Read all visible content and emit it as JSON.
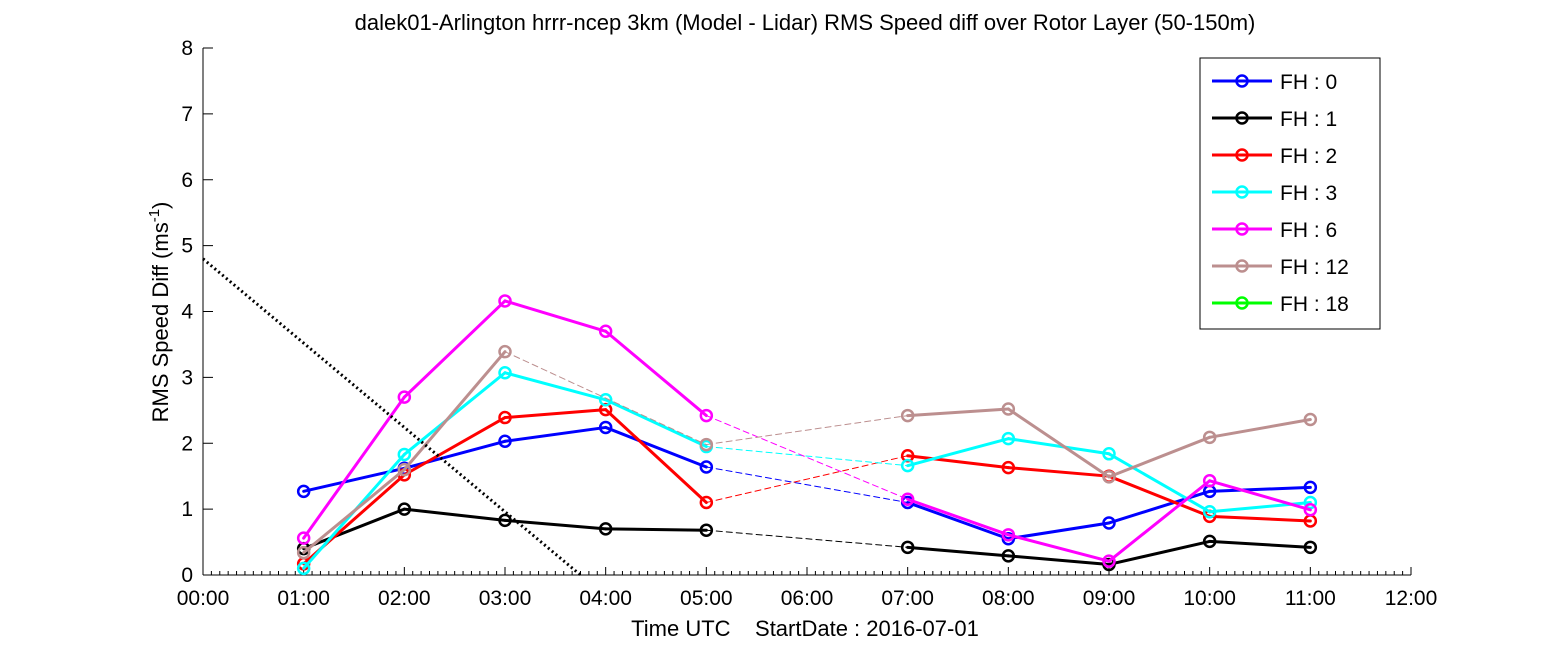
{
  "chart_data": {
    "type": "line",
    "title": "dalek01-Arlington hrrr-ncep 3km (Model - Lidar) RMS Speed diff over Rotor Layer (50-150m)",
    "xlabel": "Time UTC    StartDate : 2016-07-01",
    "ylabel_main": "RMS Speed Diff (ms",
    "ylabel_sup": "-1",
    "ylabel_end": ")",
    "xlim": [
      0,
      12
    ],
    "ylim": [
      0,
      8
    ],
    "x_tick_labels": [
      "00:00",
      "01:00",
      "02:00",
      "03:00",
      "04:00",
      "05:00",
      "06:00",
      "07:00",
      "08:00",
      "09:00",
      "10:00",
      "11:00",
      "12:00"
    ],
    "y_tick_labels": [
      "0",
      "1",
      "2",
      "3",
      "4",
      "5",
      "6",
      "7",
      "8"
    ],
    "grid": false,
    "legend_position": "top-right",
    "series": [
      {
        "name": "FH : 0",
        "color": "#0000ff",
        "points": [
          [
            1,
            1.27
          ],
          [
            2,
            1.62
          ],
          [
            3,
            2.03
          ],
          [
            4,
            2.24
          ],
          [
            5,
            1.64
          ],
          [
            7,
            1.1
          ],
          [
            8,
            0.55
          ],
          [
            9,
            0.79
          ],
          [
            10,
            1.27
          ],
          [
            11,
            1.33
          ]
        ]
      },
      {
        "name": "FH : 1",
        "color": "#000000",
        "points": [
          [
            1,
            0.4
          ],
          [
            2,
            1.0
          ],
          [
            3,
            0.83
          ],
          [
            4,
            0.7
          ],
          [
            5,
            0.68
          ],
          [
            7,
            0.42
          ],
          [
            8,
            0.29
          ],
          [
            9,
            0.16
          ],
          [
            10,
            0.51
          ],
          [
            11,
            0.42
          ]
        ]
      },
      {
        "name": "FH : 2",
        "color": "#ff0000",
        "points": [
          [
            1,
            0.17
          ],
          [
            2,
            1.52
          ],
          [
            3,
            2.39
          ],
          [
            4,
            2.51
          ],
          [
            5,
            1.1
          ],
          [
            7,
            1.81
          ],
          [
            8,
            1.63
          ],
          [
            9,
            1.5
          ],
          [
            10,
            0.89
          ],
          [
            11,
            0.82
          ]
        ]
      },
      {
        "name": "FH : 3",
        "color": "#00ffff",
        "points": [
          [
            1,
            0.1
          ],
          [
            2,
            1.83
          ],
          [
            3,
            3.07
          ],
          [
            4,
            2.66
          ],
          [
            5,
            1.95
          ],
          [
            7,
            1.66
          ],
          [
            8,
            2.07
          ],
          [
            9,
            1.84
          ],
          [
            10,
            0.96
          ],
          [
            11,
            1.1
          ]
        ]
      },
      {
        "name": "FH : 6",
        "color": "#ff00ff",
        "points": [
          [
            1,
            0.56
          ],
          [
            2,
            2.7
          ],
          [
            3,
            4.16
          ],
          [
            4,
            3.7
          ],
          [
            5,
            2.42
          ],
          [
            7,
            1.15
          ],
          [
            8,
            0.61
          ],
          [
            9,
            0.21
          ],
          [
            10,
            1.43
          ],
          [
            11,
            0.99
          ]
        ]
      },
      {
        "name": "FH : 12",
        "color": "#bc8f8f",
        "points": [
          [
            1,
            0.34
          ],
          [
            2,
            1.6
          ],
          [
            3,
            3.39
          ],
          [
            5,
            1.98
          ],
          [
            7,
            2.42
          ],
          [
            8,
            2.52
          ],
          [
            9,
            1.49
          ],
          [
            10,
            2.09
          ],
          [
            11,
            2.36
          ]
        ]
      },
      {
        "name": "FH : 18",
        "color": "#00ff00",
        "points": []
      }
    ],
    "reference_line": {
      "color": "#000000",
      "points": [
        [
          0,
          4.8
        ],
        [
          3.75,
          0
        ]
      ]
    }
  }
}
